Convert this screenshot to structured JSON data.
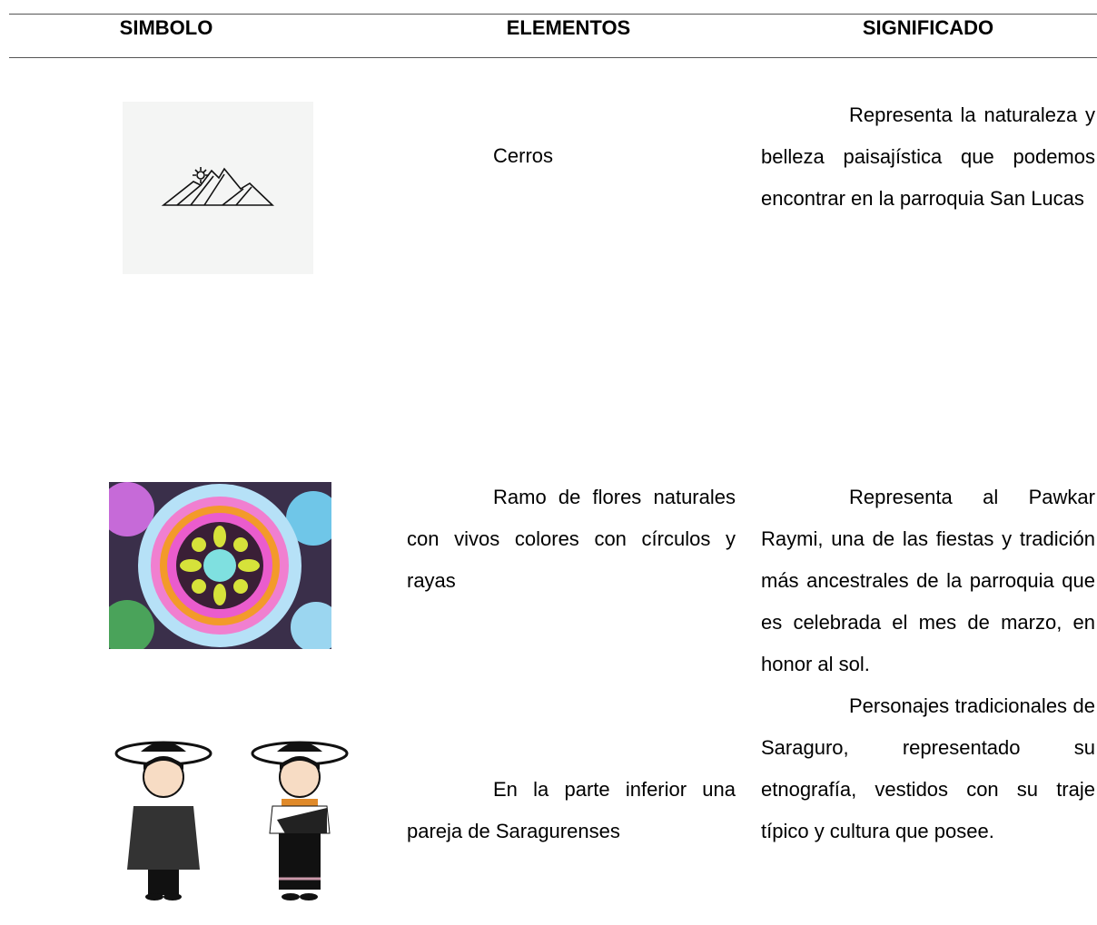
{
  "header": {
    "columns": [
      "SIMBOLO",
      "ELEMENTOS",
      "SIGNIFICADO"
    ]
  },
  "rows": [
    {
      "element": "Cerros",
      "meaning": "Representa la naturaleza y belleza paisajística que podemos encontrar en la parroquia San Lucas"
    },
    {
      "element": "Ramo de flores naturales con vivos colores con círculos y rayas",
      "meaning": "Representa al Pawkar Raymi, una de las fiestas y tradición más ancestrales de la parroquia que es celebrada el mes de marzo, en honor al sol."
    },
    {
      "element": "En la parte inferior una pareja de Saragurenses",
      "meaning": "Personajes tradicionales de Saraguro, representado su etnografía, vestidos con su traje típico y cultura que posee."
    }
  ]
}
